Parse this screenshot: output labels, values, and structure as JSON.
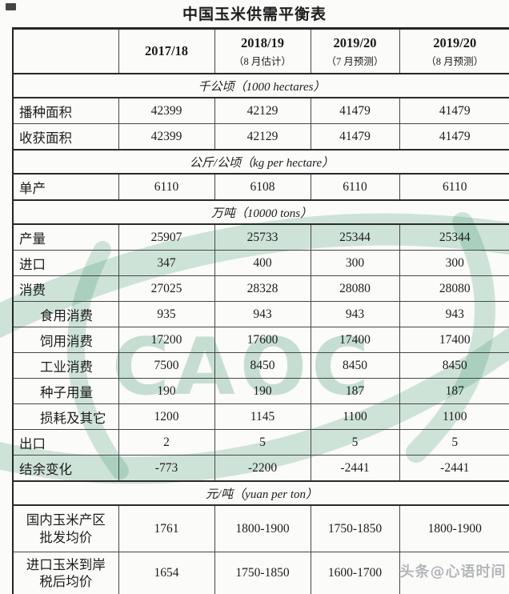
{
  "title": "中国玉米供需平衡表",
  "watermark": {
    "logo_text": "CAOC",
    "credit": "头条@心语时间",
    "logo_color": "#2e8b5f"
  },
  "table": {
    "columns": [
      {
        "year": "",
        "sub": ""
      },
      {
        "year": "2017/18",
        "sub": ""
      },
      {
        "year": "2018/19",
        "sub": "（8 月估计）"
      },
      {
        "year": "2019/20",
        "sub": "（7 月预测）"
      },
      {
        "year": "2019/20",
        "sub": "（8 月预测）"
      }
    ],
    "rows": [
      {
        "type": "section",
        "label": "千公顷（1000 hectares）"
      },
      {
        "type": "data",
        "label": "播种面积",
        "values": [
          "42399",
          "42129",
          "41479",
          "41479"
        ]
      },
      {
        "type": "data",
        "label": "收获面积",
        "values": [
          "42399",
          "42129",
          "41479",
          "41479"
        ]
      },
      {
        "type": "section",
        "label": "公斤/公顷（kg per hectare）"
      },
      {
        "type": "data",
        "label": "单产",
        "values": [
          "6110",
          "6108",
          "6110",
          "6110"
        ]
      },
      {
        "type": "section",
        "label": "万吨（10000 tons）"
      },
      {
        "type": "data",
        "label": "产量",
        "values": [
          "25907",
          "25733",
          "25344",
          "25344"
        ]
      },
      {
        "type": "data",
        "label": "进口",
        "values": [
          "347",
          "400",
          "300",
          "300"
        ]
      },
      {
        "type": "data",
        "label": "消费",
        "values": [
          "27025",
          "28328",
          "28080",
          "28080"
        ]
      },
      {
        "type": "data",
        "indent": true,
        "label": "食用消费",
        "values": [
          "935",
          "943",
          "943",
          "943"
        ]
      },
      {
        "type": "data",
        "indent": true,
        "label": "饲用消费",
        "values": [
          "17200",
          "17600",
          "17400",
          "17400"
        ]
      },
      {
        "type": "data",
        "indent": true,
        "label": "工业消费",
        "values": [
          "7500",
          "8450",
          "8450",
          "8450"
        ]
      },
      {
        "type": "data",
        "indent": true,
        "label": "种子用量",
        "values": [
          "190",
          "190",
          "187",
          "187"
        ]
      },
      {
        "type": "data",
        "indent": true,
        "label": "损耗及其它",
        "values": [
          "1200",
          "1145",
          "1100",
          "1100"
        ]
      },
      {
        "type": "data",
        "label": "出口",
        "values": [
          "2",
          "5",
          "5",
          "5"
        ]
      },
      {
        "type": "data",
        "label": "结余变化",
        "values": [
          "-773",
          "-2200",
          "-2441",
          "-2441"
        ]
      },
      {
        "type": "section",
        "label": "元/吨（yuan per ton）"
      },
      {
        "type": "data",
        "tall": true,
        "label": "国内玉米产区\n批发均价",
        "values": [
          "1761",
          "1800-1900",
          "1750-1850",
          "1800-1900"
        ]
      },
      {
        "type": "data",
        "tall": true,
        "label": "进口玉米到岸\n税后均价",
        "values": [
          "1654",
          "1750-1850",
          "1600-1700",
          ""
        ]
      }
    ]
  }
}
